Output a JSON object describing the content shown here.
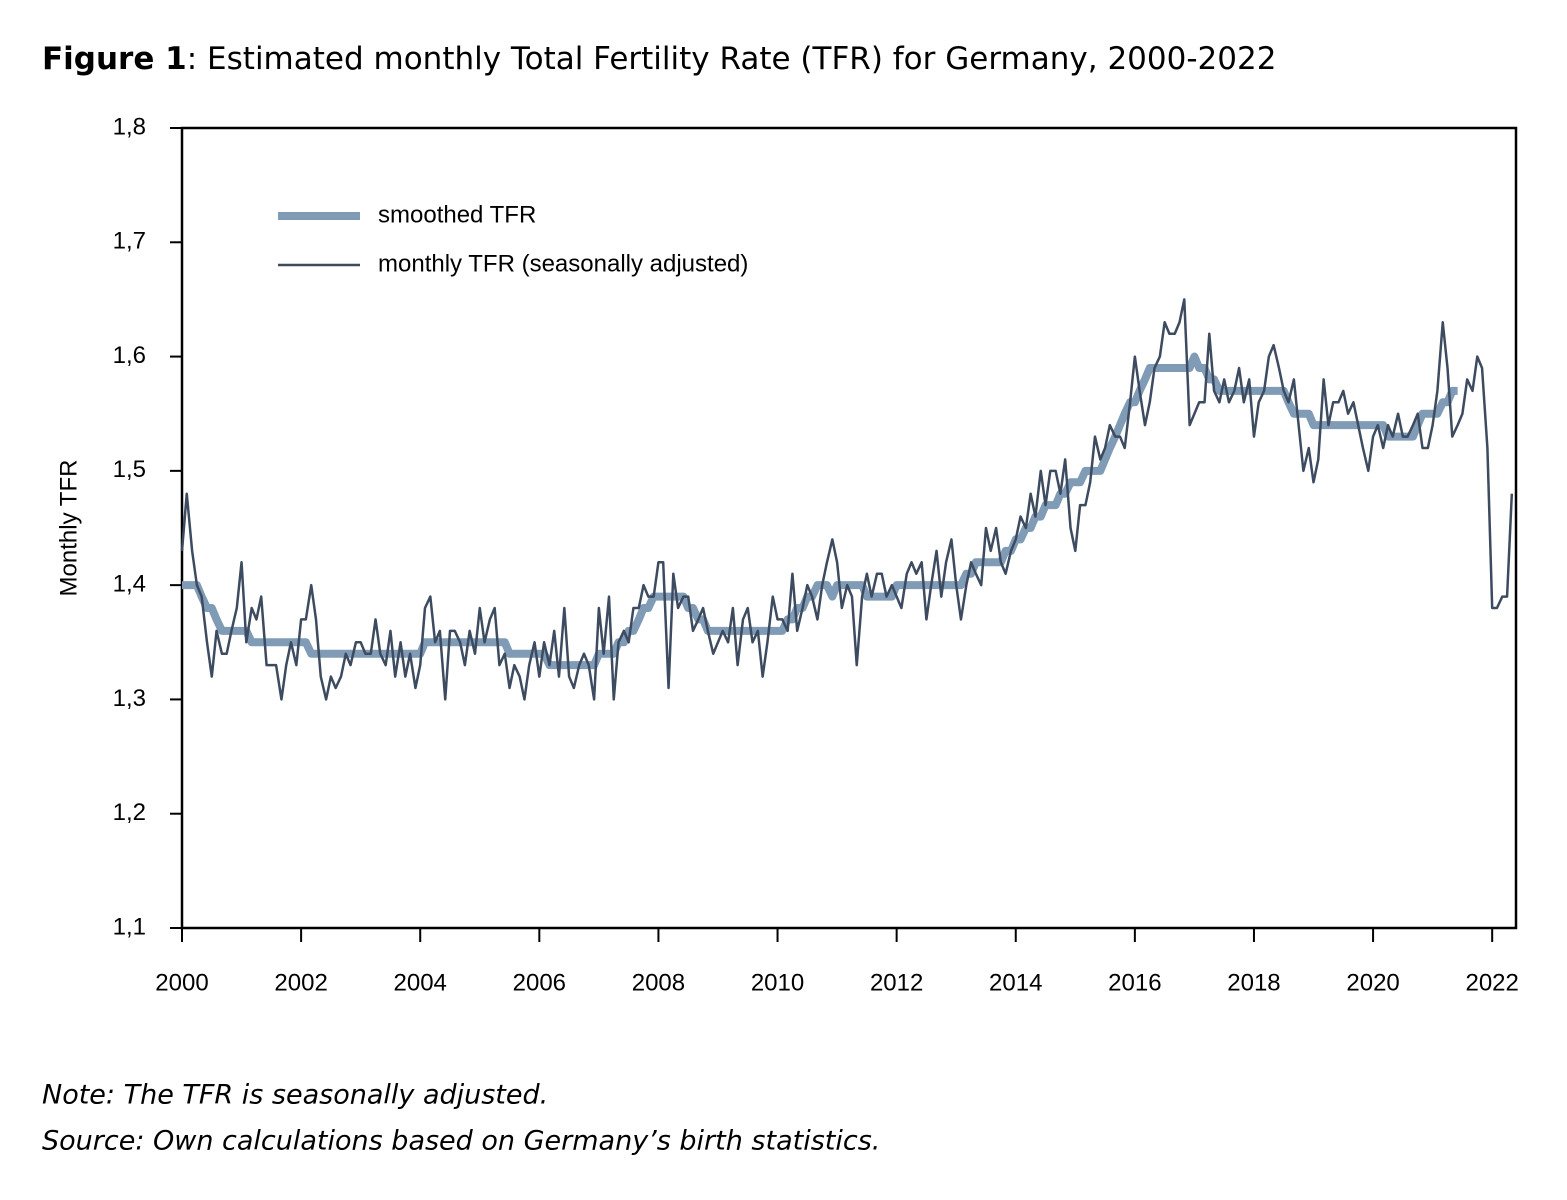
{
  "chart_data": {
    "type": "line",
    "figure_label": "Figure 1",
    "title": ": Estimated monthly Total Fertility Rate (TFR) for Germany, 2000-2022",
    "y_label": "Monthly TFR",
    "note": "Note: The TFR is seasonally adjusted.",
    "source": "Source: Own calculations based on Germany’s birth statistics.",
    "legend": "upper left",
    "xlim": [
      2000,
      2022.4
    ],
    "xticks": [
      2000,
      2002,
      2004,
      2006,
      2008,
      2010,
      2012,
      2014,
      2016,
      2018,
      2020,
      2022
    ],
    "ylim": [
      1.1,
      1.8
    ],
    "yticks": [
      {
        "value": 1.1,
        "label": "1,1"
      },
      {
        "value": 1.2,
        "label": "1,2"
      },
      {
        "value": 1.3,
        "label": "1,3"
      },
      {
        "value": 1.4,
        "label": "1,4"
      },
      {
        "value": 1.5,
        "label": "1,5"
      },
      {
        "value": 1.6,
        "label": "1,6"
      },
      {
        "value": 1.7,
        "label": "1,7"
      },
      {
        "value": 1.8,
        "label": "1,8"
      }
    ],
    "x": [
      2000,
      2000.08,
      2000.17,
      2000.25,
      2000.33,
      2000.42,
      2000.5,
      2000.58,
      2000.67,
      2000.75,
      2000.83,
      2000.92,
      2001,
      2001.08,
      2001.17,
      2001.25,
      2001.33,
      2001.42,
      2001.5,
      2001.58,
      2001.67,
      2001.75,
      2001.83,
      2001.92,
      2002,
      2002.08,
      2002.17,
      2002.25,
      2002.33,
      2002.42,
      2002.5,
      2002.58,
      2002.67,
      2002.75,
      2002.83,
      2002.92,
      2003,
      2003.08,
      2003.17,
      2003.25,
      2003.33,
      2003.42,
      2003.5,
      2003.58,
      2003.67,
      2003.75,
      2003.83,
      2003.92,
      2004,
      2004.08,
      2004.17,
      2004.25,
      2004.33,
      2004.42,
      2004.5,
      2004.58,
      2004.67,
      2004.75,
      2004.83,
      2004.92,
      2005,
      2005.08,
      2005.17,
      2005.25,
      2005.33,
      2005.42,
      2005.5,
      2005.58,
      2005.67,
      2005.75,
      2005.83,
      2005.92,
      2006,
      2006.08,
      2006.17,
      2006.25,
      2006.33,
      2006.42,
      2006.5,
      2006.58,
      2006.67,
      2006.75,
      2006.83,
      2006.92,
      2007,
      2007.08,
      2007.17,
      2007.25,
      2007.33,
      2007.42,
      2007.5,
      2007.58,
      2007.67,
      2007.75,
      2007.83,
      2007.92,
      2008,
      2008.08,
      2008.17,
      2008.25,
      2008.33,
      2008.42,
      2008.5,
      2008.58,
      2008.67,
      2008.75,
      2008.83,
      2008.92,
      2009,
      2009.08,
      2009.17,
      2009.25,
      2009.33,
      2009.42,
      2009.5,
      2009.58,
      2009.67,
      2009.75,
      2009.83,
      2009.92,
      2010,
      2010.08,
      2010.17,
      2010.25,
      2010.33,
      2010.42,
      2010.5,
      2010.58,
      2010.67,
      2010.75,
      2010.83,
      2010.92,
      2011,
      2011.08,
      2011.17,
      2011.25,
      2011.33,
      2011.42,
      2011.5,
      2011.58,
      2011.67,
      2011.75,
      2011.83,
      2011.92,
      2012,
      2012.08,
      2012.17,
      2012.25,
      2012.33,
      2012.42,
      2012.5,
      2012.58,
      2012.67,
      2012.75,
      2012.83,
      2012.92,
      2013,
      2013.08,
      2013.17,
      2013.25,
      2013.33,
      2013.42,
      2013.5,
      2013.58,
      2013.67,
      2013.75,
      2013.83,
      2013.92,
      2014,
      2014.08,
      2014.17,
      2014.25,
      2014.33,
      2014.42,
      2014.5,
      2014.58,
      2014.67,
      2014.75,
      2014.83,
      2014.92,
      2015,
      2015.08,
      2015.17,
      2015.25,
      2015.33,
      2015.42,
      2015.5,
      2015.58,
      2015.67,
      2015.75,
      2015.83,
      2015.92,
      2016,
      2016.08,
      2016.17,
      2016.25,
      2016.33,
      2016.42,
      2016.5,
      2016.58,
      2016.67,
      2016.75,
      2016.83,
      2016.92,
      2017,
      2017.08,
      2017.17,
      2017.25,
      2017.33,
      2017.42,
      2017.5,
      2017.58,
      2017.67,
      2017.75,
      2017.83,
      2017.92,
      2018,
      2018.08,
      2018.17,
      2018.25,
      2018.33,
      2018.42,
      2018.5,
      2018.58,
      2018.67,
      2018.75,
      2018.83,
      2018.92,
      2019,
      2019.08,
      2019.17,
      2019.25,
      2019.33,
      2019.42,
      2019.5,
      2019.58,
      2019.67,
      2019.75,
      2019.83,
      2019.92,
      2020,
      2020.08,
      2020.17,
      2020.25,
      2020.33,
      2020.42,
      2020.5,
      2020.58,
      2020.67,
      2020.75,
      2020.83,
      2020.92,
      2021,
      2021.08,
      2021.17,
      2021.25,
      2021.33,
      2021.42,
      2021.5,
      2021.58,
      2021.67,
      2021.75,
      2021.83,
      2021.92,
      2022,
      2022.08,
      2022.17,
      2022.25,
      2022.33
    ],
    "series": [
      {
        "name": "smoothed TFR",
        "color": "#7f9bb5",
        "width": 8,
        "values": [
          1.4,
          1.4,
          1.4,
          1.4,
          1.39,
          1.38,
          1.38,
          1.37,
          1.36,
          1.36,
          1.36,
          1.36,
          1.36,
          1.36,
          1.35,
          1.35,
          1.35,
          1.35,
          1.35,
          1.35,
          1.35,
          1.35,
          1.35,
          1.35,
          1.35,
          1.35,
          1.34,
          1.34,
          1.34,
          1.34,
          1.34,
          1.34,
          1.34,
          1.34,
          1.34,
          1.34,
          1.34,
          1.34,
          1.34,
          1.34,
          1.34,
          1.34,
          1.34,
          1.34,
          1.34,
          1.34,
          1.34,
          1.34,
          1.34,
          1.35,
          1.35,
          1.35,
          1.35,
          1.35,
          1.35,
          1.35,
          1.35,
          1.35,
          1.35,
          1.35,
          1.35,
          1.35,
          1.35,
          1.35,
          1.35,
          1.35,
          1.34,
          1.34,
          1.34,
          1.34,
          1.34,
          1.34,
          1.34,
          1.34,
          1.33,
          1.33,
          1.33,
          1.33,
          1.33,
          1.33,
          1.33,
          1.33,
          1.33,
          1.33,
          1.34,
          1.34,
          1.34,
          1.34,
          1.35,
          1.35,
          1.36,
          1.36,
          1.37,
          1.38,
          1.38,
          1.39,
          1.39,
          1.39,
          1.39,
          1.39,
          1.39,
          1.39,
          1.38,
          1.38,
          1.37,
          1.37,
          1.36,
          1.36,
          1.36,
          1.36,
          1.36,
          1.36,
          1.36,
          1.36,
          1.36,
          1.36,
          1.36,
          1.36,
          1.36,
          1.36,
          1.36,
          1.36,
          1.37,
          1.37,
          1.38,
          1.38,
          1.39,
          1.39,
          1.4,
          1.4,
          1.4,
          1.39,
          1.4,
          1.4,
          1.4,
          1.4,
          1.4,
          1.4,
          1.39,
          1.39,
          1.39,
          1.39,
          1.39,
          1.39,
          1.4,
          1.4,
          1.4,
          1.4,
          1.4,
          1.4,
          1.4,
          1.4,
          1.4,
          1.4,
          1.4,
          1.4,
          1.4,
          1.4,
          1.41,
          1.41,
          1.42,
          1.42,
          1.42,
          1.42,
          1.42,
          1.42,
          1.43,
          1.43,
          1.44,
          1.44,
          1.45,
          1.45,
          1.46,
          1.46,
          1.47,
          1.47,
          1.47,
          1.48,
          1.48,
          1.49,
          1.49,
          1.49,
          1.5,
          1.5,
          1.5,
          1.5,
          1.51,
          1.52,
          1.53,
          1.54,
          1.55,
          1.56,
          1.56,
          1.57,
          1.58,
          1.59,
          1.59,
          1.59,
          1.59,
          1.59,
          1.59,
          1.59,
          1.59,
          1.59,
          1.6,
          1.59,
          1.59,
          1.58,
          1.58,
          1.57,
          1.57,
          1.57,
          1.57,
          1.57,
          1.57,
          1.57,
          1.57,
          1.57,
          1.57,
          1.57,
          1.57,
          1.57,
          1.57,
          1.56,
          1.55,
          1.55,
          1.55,
          1.55,
          1.54,
          1.54,
          1.54,
          1.54,
          1.54,
          1.54,
          1.54,
          1.54,
          1.54,
          1.54,
          1.54,
          1.54,
          1.54,
          1.54,
          1.54,
          1.53,
          1.53,
          1.53,
          1.53,
          1.53,
          1.53,
          1.54,
          1.55,
          1.55,
          1.55,
          1.55,
          1.56,
          1.56,
          1.57,
          1.57,
          null,
          null,
          null,
          null,
          null,
          null,
          null,
          null,
          null,
          null,
          null
        ]
      },
      {
        "name": "monthly TFR (seasonally adjusted)",
        "color": "#3d4b60",
        "width": 2.5,
        "values": [
          1.43,
          1.48,
          1.43,
          1.4,
          1.39,
          1.35,
          1.32,
          1.36,
          1.34,
          1.34,
          1.36,
          1.38,
          1.42,
          1.35,
          1.38,
          1.37,
          1.39,
          1.33,
          1.33,
          1.33,
          1.3,
          1.33,
          1.35,
          1.33,
          1.37,
          1.37,
          1.4,
          1.37,
          1.32,
          1.3,
          1.32,
          1.31,
          1.32,
          1.34,
          1.33,
          1.35,
          1.35,
          1.34,
          1.34,
          1.37,
          1.34,
          1.33,
          1.36,
          1.32,
          1.35,
          1.32,
          1.34,
          1.31,
          1.33,
          1.38,
          1.39,
          1.35,
          1.36,
          1.3,
          1.36,
          1.36,
          1.35,
          1.33,
          1.36,
          1.34,
          1.38,
          1.35,
          1.37,
          1.38,
          1.33,
          1.34,
          1.31,
          1.33,
          1.32,
          1.3,
          1.33,
          1.35,
          1.32,
          1.35,
          1.33,
          1.36,
          1.32,
          1.38,
          1.32,
          1.31,
          1.33,
          1.34,
          1.33,
          1.3,
          1.38,
          1.34,
          1.39,
          1.3,
          1.35,
          1.36,
          1.35,
          1.38,
          1.38,
          1.4,
          1.39,
          1.39,
          1.42,
          1.42,
          1.31,
          1.41,
          1.38,
          1.39,
          1.39,
          1.36,
          1.37,
          1.38,
          1.36,
          1.34,
          1.35,
          1.36,
          1.35,
          1.38,
          1.33,
          1.37,
          1.38,
          1.35,
          1.36,
          1.32,
          1.35,
          1.39,
          1.37,
          1.37,
          1.36,
          1.41,
          1.36,
          1.38,
          1.4,
          1.39,
          1.37,
          1.4,
          1.42,
          1.44,
          1.42,
          1.38,
          1.4,
          1.39,
          1.33,
          1.39,
          1.41,
          1.39,
          1.41,
          1.41,
          1.39,
          1.4,
          1.39,
          1.38,
          1.41,
          1.42,
          1.41,
          1.42,
          1.37,
          1.4,
          1.43,
          1.39,
          1.42,
          1.44,
          1.4,
          1.37,
          1.4,
          1.42,
          1.41,
          1.4,
          1.45,
          1.43,
          1.45,
          1.42,
          1.41,
          1.43,
          1.44,
          1.46,
          1.45,
          1.48,
          1.46,
          1.5,
          1.47,
          1.5,
          1.5,
          1.48,
          1.51,
          1.45,
          1.43,
          1.47,
          1.47,
          1.49,
          1.53,
          1.51,
          1.52,
          1.54,
          1.53,
          1.53,
          1.52,
          1.56,
          1.6,
          1.57,
          1.54,
          1.56,
          1.59,
          1.6,
          1.63,
          1.62,
          1.62,
          1.63,
          1.65,
          1.54,
          1.55,
          1.56,
          1.56,
          1.62,
          1.57,
          1.56,
          1.58,
          1.56,
          1.57,
          1.59,
          1.56,
          1.58,
          1.53,
          1.56,
          1.57,
          1.6,
          1.61,
          1.59,
          1.57,
          1.56,
          1.58,
          1.54,
          1.5,
          1.52,
          1.49,
          1.51,
          1.58,
          1.54,
          1.56,
          1.56,
          1.57,
          1.55,
          1.56,
          1.54,
          1.52,
          1.5,
          1.53,
          1.54,
          1.52,
          1.54,
          1.53,
          1.55,
          1.53,
          1.53,
          1.54,
          1.55,
          1.52,
          1.52,
          1.54,
          1.57,
          1.63,
          1.59,
          1.53,
          1.54,
          1.55,
          1.58,
          1.57,
          1.6,
          1.59,
          1.52,
          1.38,
          1.38,
          1.39,
          1.39,
          1.48
        ]
      }
    ]
  }
}
